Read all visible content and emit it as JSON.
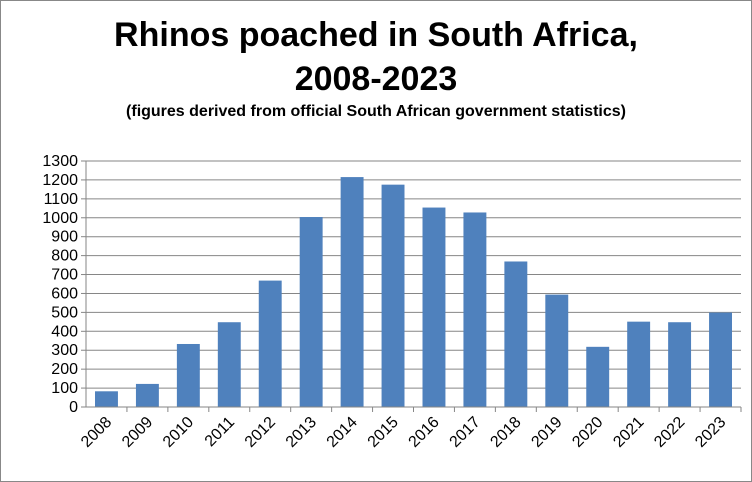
{
  "chart_data": {
    "type": "bar",
    "title": "Rhinos poached in South Africa, 2008-2023",
    "title_lines": [
      "Rhinos poached in South Africa,",
      "2008-2023"
    ],
    "subtitle": "(figures derived from official South African government statistics)",
    "xlabel": "",
    "ylabel": "",
    "categories": [
      "2008",
      "2009",
      "2010",
      "2011",
      "2012",
      "2013",
      "2014",
      "2015",
      "2016",
      "2017",
      "2018",
      "2019",
      "2020",
      "2021",
      "2022",
      "2023"
    ],
    "values": [
      83,
      122,
      333,
      448,
      668,
      1004,
      1215,
      1175,
      1054,
      1028,
      769,
      594,
      318,
      451,
      448,
      499
    ],
    "ylim": [
      0,
      1300
    ],
    "ytick_step": 100,
    "grid": true,
    "legend": "none",
    "bar_color": "#4f81bd"
  }
}
